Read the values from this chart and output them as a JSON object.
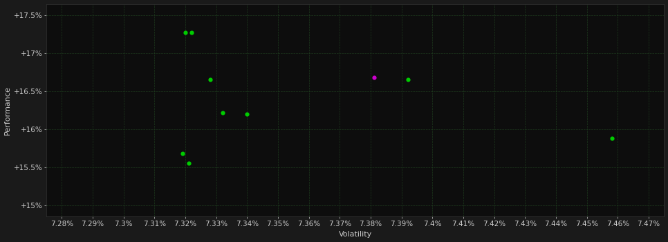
{
  "background_color": "#1a1a1a",
  "plot_bg_color": "#0d0d0d",
  "grid_color": "#1e3a1e",
  "text_color": "#cccccc",
  "xlabel": "Volatility",
  "ylabel": "Performance",
  "xlim": [
    7.275,
    7.475
  ],
  "ylim": [
    14.85,
    17.65
  ],
  "xtick_vals": [
    7.28,
    7.29,
    7.3,
    7.31,
    7.32,
    7.33,
    7.34,
    7.35,
    7.36,
    7.37,
    7.38,
    7.39,
    7.4,
    7.41,
    7.42,
    7.43,
    7.44,
    7.45,
    7.46,
    7.47
  ],
  "xtick_labels": [
    "7.28%",
    "7.29%",
    "7.3%",
    "7.31%",
    "7.32%",
    "7.33%",
    "7.34%",
    "7.35%",
    "7.36%",
    "7.37%",
    "7.38%",
    "7.39%",
    "7.4%",
    "7.41%",
    "7.42%",
    "7.43%",
    "7.44%",
    "7.45%",
    "7.46%",
    "7.47%"
  ],
  "ytick_vals": [
    15.0,
    15.5,
    16.0,
    16.5,
    17.0,
    17.5
  ],
  "ytick_labels": [
    "+15%",
    "+15.5%",
    "+16%",
    "+16.5%",
    "+17%",
    "+17.5%"
  ],
  "green_points": [
    [
      7.32,
      17.27
    ],
    [
      7.322,
      17.27
    ],
    [
      7.328,
      16.65
    ],
    [
      7.332,
      16.22
    ],
    [
      7.34,
      16.2
    ],
    [
      7.319,
      15.68
    ],
    [
      7.321,
      15.55
    ],
    [
      7.392,
      16.65
    ],
    [
      7.458,
      15.88
    ]
  ],
  "magenta_points": [
    [
      7.381,
      16.68
    ]
  ],
  "green_color": "#00cc00",
  "magenta_color": "#cc00cc",
  "point_size": 20,
  "font_size_axis_label": 8,
  "font_size_tick": 7.5
}
